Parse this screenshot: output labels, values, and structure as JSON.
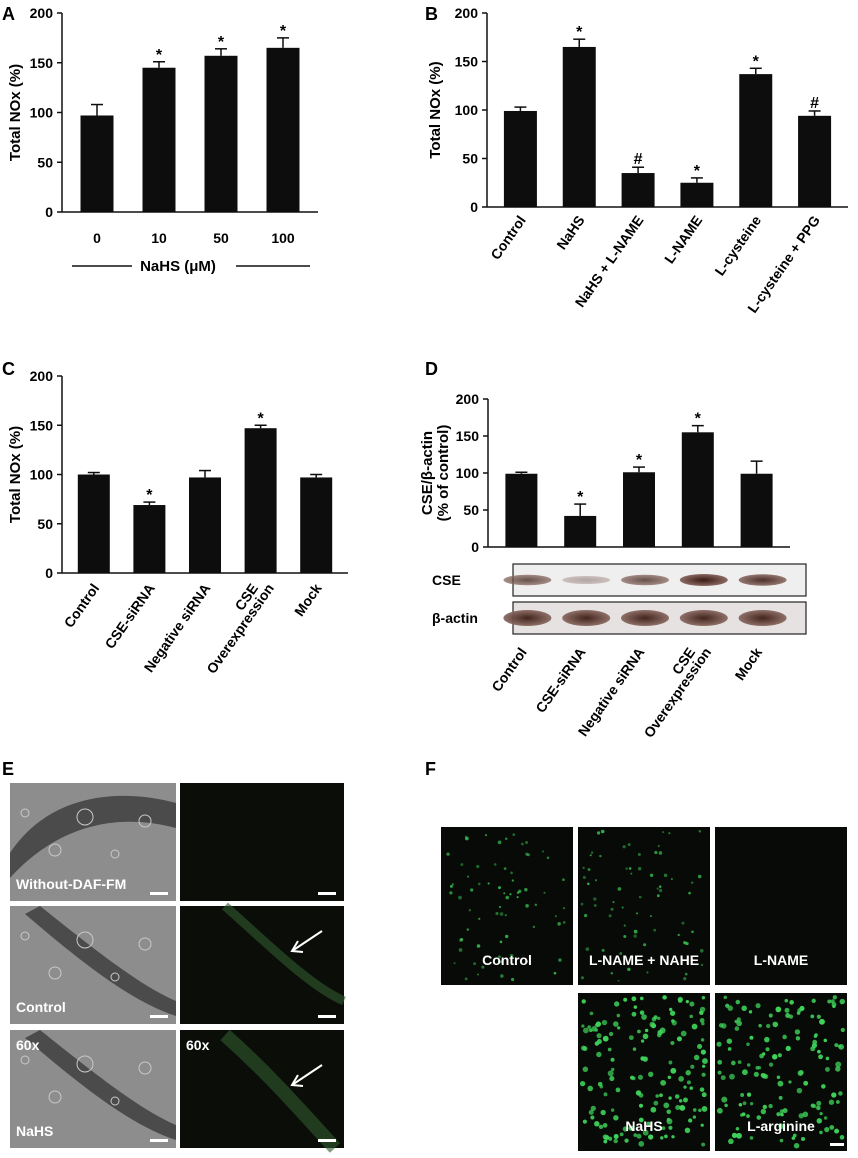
{
  "panels": {
    "A": "A",
    "B": "B",
    "C": "C",
    "D": "D",
    "E": "E",
    "F": "F"
  },
  "chart_data": [
    {
      "id": "A",
      "type": "bar",
      "categories": [
        "0",
        "10",
        "50",
        "100"
      ],
      "values": [
        97,
        145,
        157,
        165
      ],
      "errors": [
        11,
        6,
        7,
        10
      ],
      "significance": [
        "",
        "*",
        "*",
        "*"
      ],
      "ylabel": "Total  NOx  (%)",
      "xlabel": "NaHS (μM)",
      "ylim": [
        0,
        200
      ],
      "yticks": [
        0,
        50,
        100,
        150,
        200
      ]
    },
    {
      "id": "B",
      "type": "bar",
      "categories": [
        "Control",
        "NaHS",
        "NaHS + L-NAME",
        "L-NAME",
        "L-cysteine",
        "L-cysteine + PPG"
      ],
      "values": [
        99,
        165,
        35,
        25,
        137,
        94
      ],
      "errors": [
        4,
        8,
        6,
        5,
        6,
        5
      ],
      "significance": [
        "",
        "*",
        "#",
        "*",
        "*",
        "#"
      ],
      "ylabel": "Total  NOx  (%)",
      "ylim": [
        0,
        200
      ],
      "yticks": [
        0,
        50,
        100,
        150,
        200
      ]
    },
    {
      "id": "C",
      "type": "bar",
      "categories": [
        "Control",
        "CSE-siRNA",
        "Negative siRNA",
        "CSE Overexpression",
        "Mock"
      ],
      "category_lines": [
        [
          "Control"
        ],
        [
          "CSE-siRNA"
        ],
        [
          "Negative siRNA"
        ],
        [
          "CSE",
          "Overexpression"
        ],
        [
          "Mock"
        ]
      ],
      "values": [
        100,
        69,
        97,
        147,
        97
      ],
      "errors": [
        2,
        3,
        7,
        3,
        3
      ],
      "significance": [
        "",
        "*",
        "",
        "*",
        ""
      ],
      "ylabel": "Total  NOx  (%)",
      "ylim": [
        0,
        200
      ],
      "yticks": [
        0,
        50,
        100,
        150,
        200
      ]
    },
    {
      "id": "D",
      "type": "bar",
      "categories": [
        "Control",
        "CSE-siRNA",
        "Negative siRNA",
        "CSE Overexpression",
        "Mock"
      ],
      "category_lines": [
        [
          "Control"
        ],
        [
          "CSE-siRNA"
        ],
        [
          "Negative siRNA"
        ],
        [
          "CSE",
          "Overexpression"
        ],
        [
          "Mock"
        ]
      ],
      "values": [
        99,
        42,
        101,
        155,
        99
      ],
      "errors": [
        2,
        16,
        7,
        9,
        17
      ],
      "significance": [
        "",
        "*",
        "*",
        "*",
        ""
      ],
      "ylabel_lines": [
        "CSE/β-actin",
        "(% of control)"
      ],
      "ylim": [
        0,
        200
      ],
      "yticks": [
        0,
        50,
        100,
        150,
        200
      ],
      "blot_rows": [
        "CSE",
        "β-actin"
      ],
      "cse_band_intensity": [
        0.75,
        0.35,
        0.75,
        1.0,
        0.9
      ]
    }
  ],
  "panel_E": {
    "labels": [
      "Without-DAF-FM",
      "Control",
      "NaHS"
    ],
    "magnification": "60x"
  },
  "panel_F": {
    "labels": [
      "Control",
      "L-NAME + NAHE",
      "L-NAME",
      "NaHS",
      "L-arginine"
    ],
    "spot_color": "#3fd35a"
  }
}
